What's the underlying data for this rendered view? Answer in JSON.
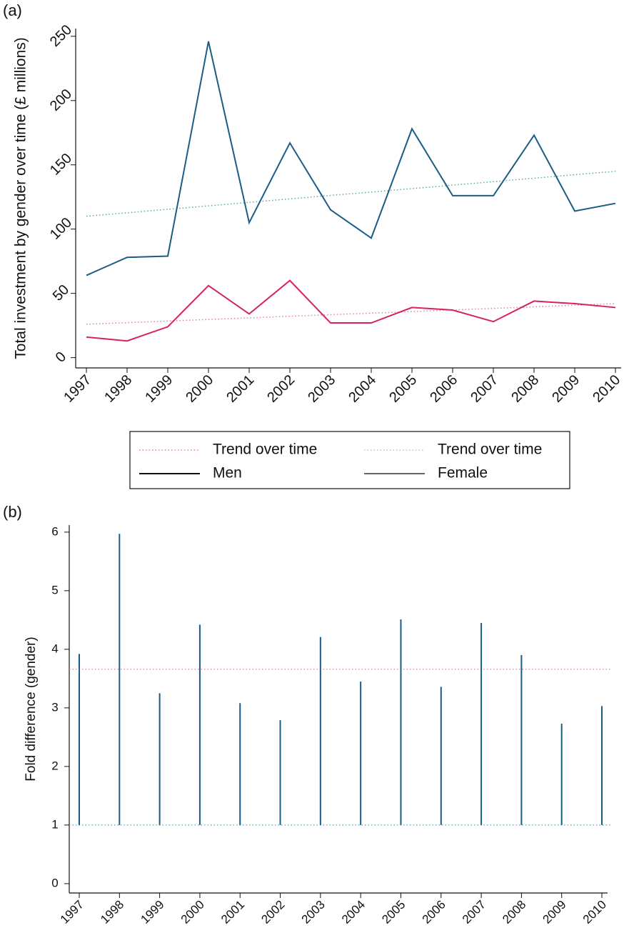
{
  "chart_data": [
    {
      "type": "line",
      "panel_label": "(a)",
      "y_label": "Total investment by gender over time (£ millions)",
      "categories": [
        "1997",
        "1998",
        "1999",
        "2000",
        "2001",
        "2002",
        "2003",
        "2004",
        "2005",
        "2006",
        "2007",
        "2008",
        "2009",
        "2010"
      ],
      "ylim": [
        -8,
        256
      ],
      "yticks": [
        0,
        50,
        100,
        150,
        200,
        250
      ],
      "series": [
        {
          "name": "Trend over time",
          "color": "#e0819f",
          "legend_color": "#e0819f",
          "dotted": true,
          "values": [
            26.0,
            27.2,
            28.5,
            29.7,
            30.9,
            32.2,
            33.4,
            34.6,
            35.8,
            37.1,
            38.3,
            39.5,
            40.8,
            42.0
          ]
        },
        {
          "name": "Trend over time",
          "color": "#5aa8a8",
          "legend_color": "#e7aebf",
          "dotted": true,
          "values": [
            110.0,
            112.7,
            115.4,
            118.1,
            120.8,
            123.5,
            126.2,
            128.8,
            131.5,
            134.2,
            136.9,
            139.6,
            142.3,
            145.0
          ]
        },
        {
          "name": "Men",
          "color": "#1a5d86",
          "legend_color": "#111111",
          "dotted": false,
          "values": [
            64,
            78,
            79,
            246,
            105,
            167,
            115,
            93,
            178,
            126,
            126,
            173,
            114,
            120
          ]
        },
        {
          "name": "Female",
          "color": "#d6245a",
          "legend_color": "#666666",
          "dotted": false,
          "values": [
            16,
            13,
            24,
            56,
            34,
            60,
            27,
            27,
            39,
            37,
            28,
            44,
            42,
            39
          ]
        }
      ]
    },
    {
      "type": "spike",
      "panel_label": "(b)",
      "y_label": "Fold difference (gender)",
      "categories": [
        "1997",
        "1998",
        "1999",
        "2000",
        "2001",
        "2002",
        "2003",
        "2004",
        "2005",
        "2006",
        "2007",
        "2008",
        "2009",
        "2010"
      ],
      "ylim": [
        -0.16,
        6.12
      ],
      "yticks": [
        0,
        1,
        2,
        3,
        4,
        5,
        6
      ],
      "base": 1,
      "color": "#1a5d86",
      "values": [
        3.92,
        5.97,
        3.25,
        4.42,
        3.08,
        2.79,
        4.21,
        3.45,
        4.51,
        3.36,
        4.45,
        3.9,
        2.73,
        3.03
      ],
      "reference_lines": [
        {
          "value": 3.66,
          "color": "#e0819f"
        },
        {
          "value": 1,
          "color": "#5aa8a8"
        }
      ]
    }
  ]
}
